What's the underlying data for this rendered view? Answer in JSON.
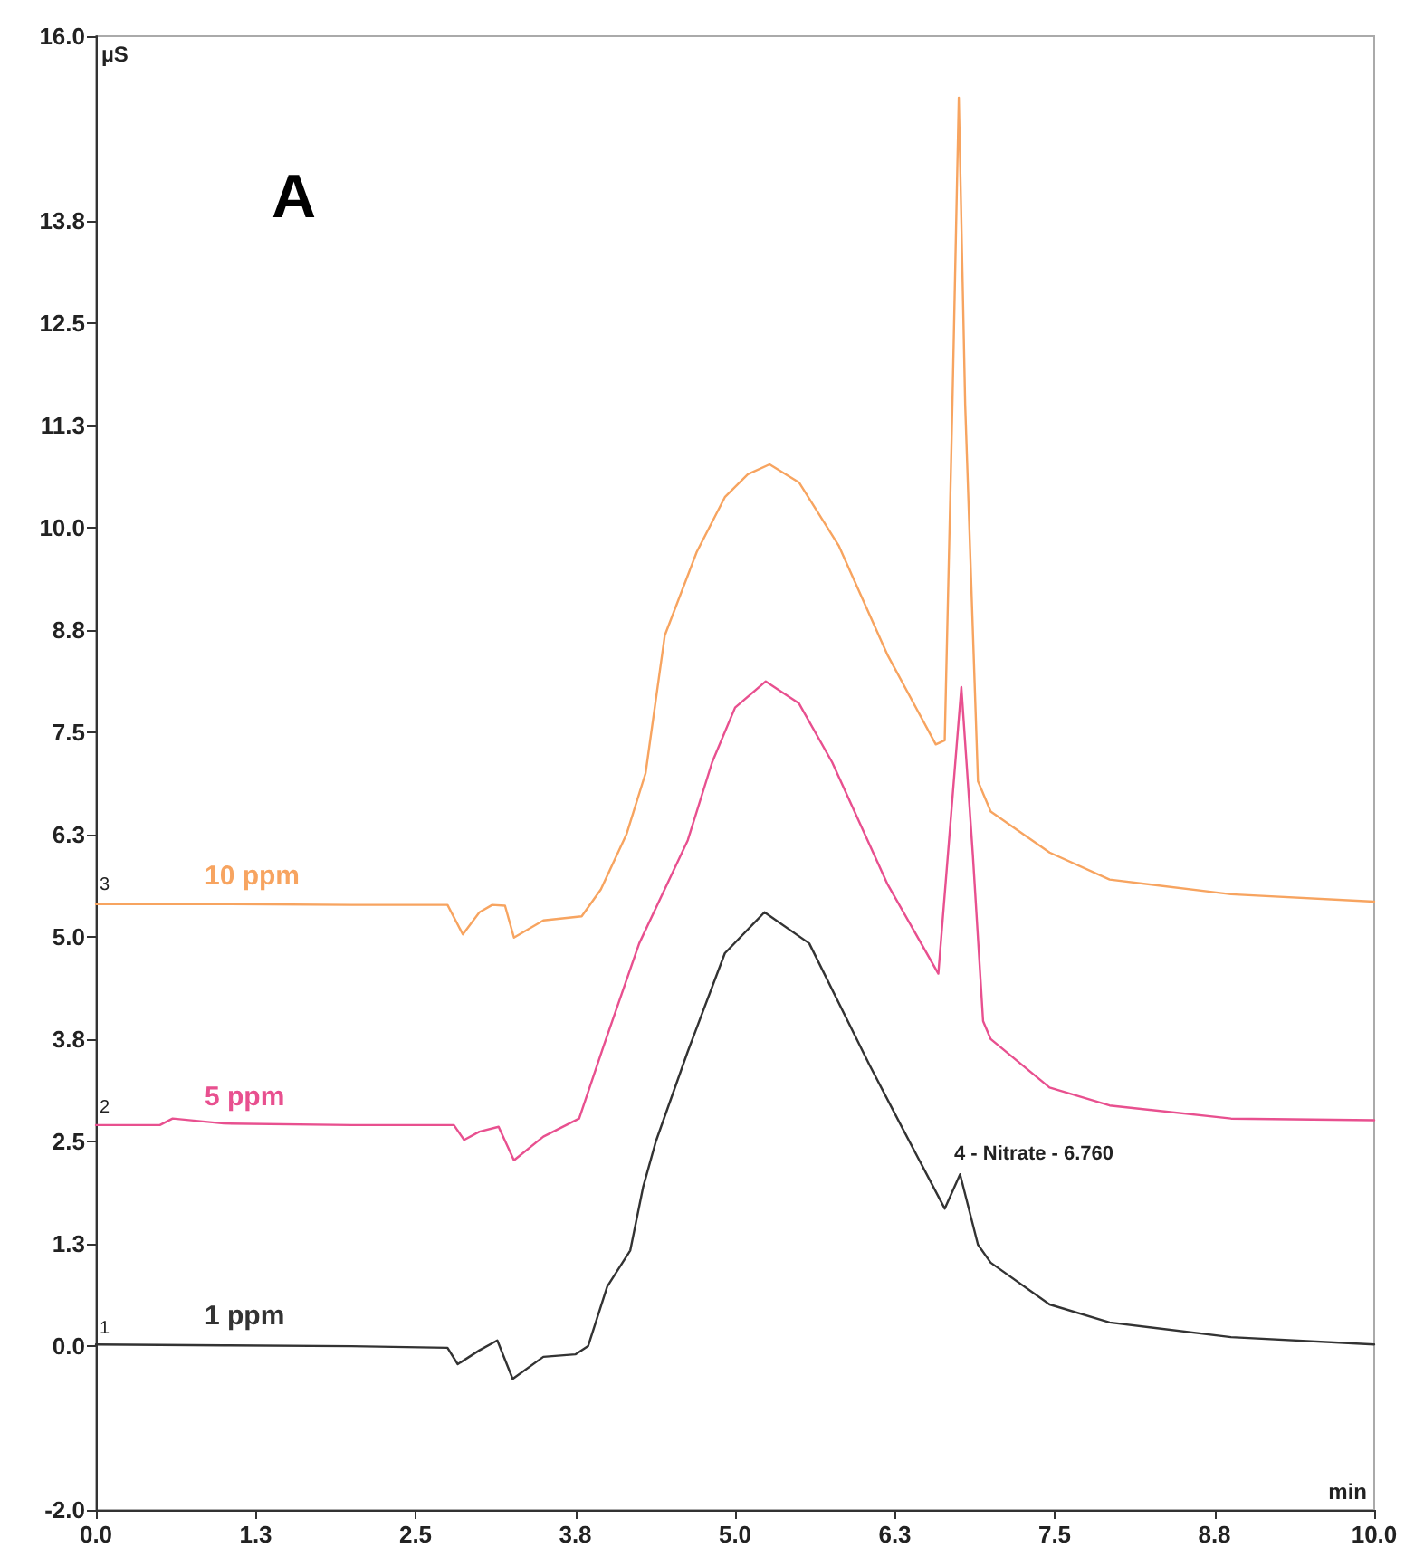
{
  "chart_data": {
    "type": "line",
    "xlabel": "min",
    "ylabel": "µS",
    "xlim": [
      0,
      10
    ],
    "ylim": [
      -2,
      16
    ],
    "xticks": [
      {
        "value": 0,
        "label": "0.0"
      },
      {
        "value": 1.25,
        "label": "1.3"
      },
      2.5,
      {
        "value": 3.75,
        "label": "3.8"
      },
      {
        "value": 5,
        "label": "5.0"
      },
      {
        "value": 6.25,
        "label": "6.3"
      },
      7.5,
      {
        "value": 8.75,
        "label": "8.8"
      },
      {
        "value": 10,
        "label": "10.0"
      }
    ],
    "yticks": [
      {
        "value": -2,
        "label": "-2.0"
      },
      {
        "value": 0,
        "label": "0.0"
      },
      {
        "value": 1.25,
        "label": "1.3"
      },
      2.5,
      {
        "value": 3.75,
        "label": "3.8"
      },
      {
        "value": 5,
        "label": "5.0"
      },
      {
        "value": 6.25,
        "label": "6.3"
      },
      7.5,
      {
        "value": 8.75,
        "label": "8.8"
      },
      {
        "value": 10,
        "label": "10.0"
      },
      {
        "value": 11.25,
        "label": "11.3"
      },
      12.5,
      {
        "value": 13.75,
        "label": "13.8"
      },
      {
        "value": 16,
        "label": "16.0"
      }
    ],
    "grid": false,
    "legend": false,
    "marker": "none",
    "line_style": "solid",
    "series": [
      {
        "name": "10 ppm",
        "color": "#f7a460",
        "x": [
          0,
          1.0,
          2.0,
          2.75,
          2.87,
          3.0,
          3.1,
          3.2,
          3.27,
          3.5,
          3.8,
          3.95,
          4.15,
          4.3,
          4.45,
          4.7,
          4.92,
          5.1,
          5.27,
          5.5,
          5.81,
          6.19,
          6.57,
          6.64,
          6.7,
          6.75,
          6.8,
          6.9,
          7.0,
          7.46,
          7.93,
          8.88,
          10.0
        ],
        "values": [
          5.4,
          5.4,
          5.39,
          5.39,
          5.03,
          5.3,
          5.39,
          5.38,
          4.99,
          5.2,
          5.25,
          5.58,
          6.25,
          7.0,
          8.68,
          9.7,
          10.37,
          10.65,
          10.77,
          10.55,
          9.78,
          8.45,
          7.35,
          7.4,
          11.5,
          15.25,
          11.5,
          6.9,
          6.53,
          6.03,
          5.7,
          5.52,
          5.43
        ]
      },
      {
        "name": "5 ppm",
        "color": "#e8508f",
        "x": [
          0,
          0.5,
          0.6,
          1.0,
          2.0,
          2.8,
          2.88,
          3.0,
          3.15,
          3.27,
          3.5,
          3.78,
          3.97,
          4.25,
          4.63,
          4.82,
          5.0,
          5.24,
          5.5,
          5.76,
          6.19,
          6.59,
          6.68,
          6.77,
          6.86,
          6.94,
          7.0,
          7.46,
          7.93,
          8.88,
          10.0
        ],
        "values": [
          2.7,
          2.7,
          2.78,
          2.72,
          2.7,
          2.7,
          2.52,
          2.62,
          2.68,
          2.27,
          2.56,
          2.78,
          3.66,
          4.92,
          6.18,
          7.13,
          7.8,
          8.12,
          7.85,
          7.13,
          5.65,
          4.55,
          6.3,
          8.05,
          6.0,
          3.97,
          3.75,
          3.16,
          2.94,
          2.78,
          2.76
        ]
      },
      {
        "name": "1 ppm",
        "color": "#333333",
        "x": [
          0,
          1.0,
          2.0,
          2.75,
          2.83,
          3.0,
          3.14,
          3.26,
          3.5,
          3.75,
          3.85,
          4.0,
          4.18,
          4.28,
          4.38,
          4.63,
          4.92,
          5.23,
          5.58,
          6.05,
          6.29,
          6.64,
          6.76,
          6.9,
          7.0,
          7.46,
          7.93,
          8.88,
          10.0
        ],
        "values": [
          0.02,
          0.01,
          0.0,
          -0.02,
          -0.22,
          -0.05,
          0.07,
          -0.4,
          -0.13,
          -0.1,
          0.0,
          0.73,
          1.17,
          1.94,
          2.5,
          3.6,
          4.8,
          5.3,
          4.92,
          3.44,
          2.72,
          1.68,
          2.1,
          1.24,
          1.02,
          0.51,
          0.29,
          0.11,
          0.02
        ]
      }
    ],
    "annotations": [
      "A",
      "4 - Nitrate - 6.760",
      "1",
      "2",
      "3"
    ]
  }
}
